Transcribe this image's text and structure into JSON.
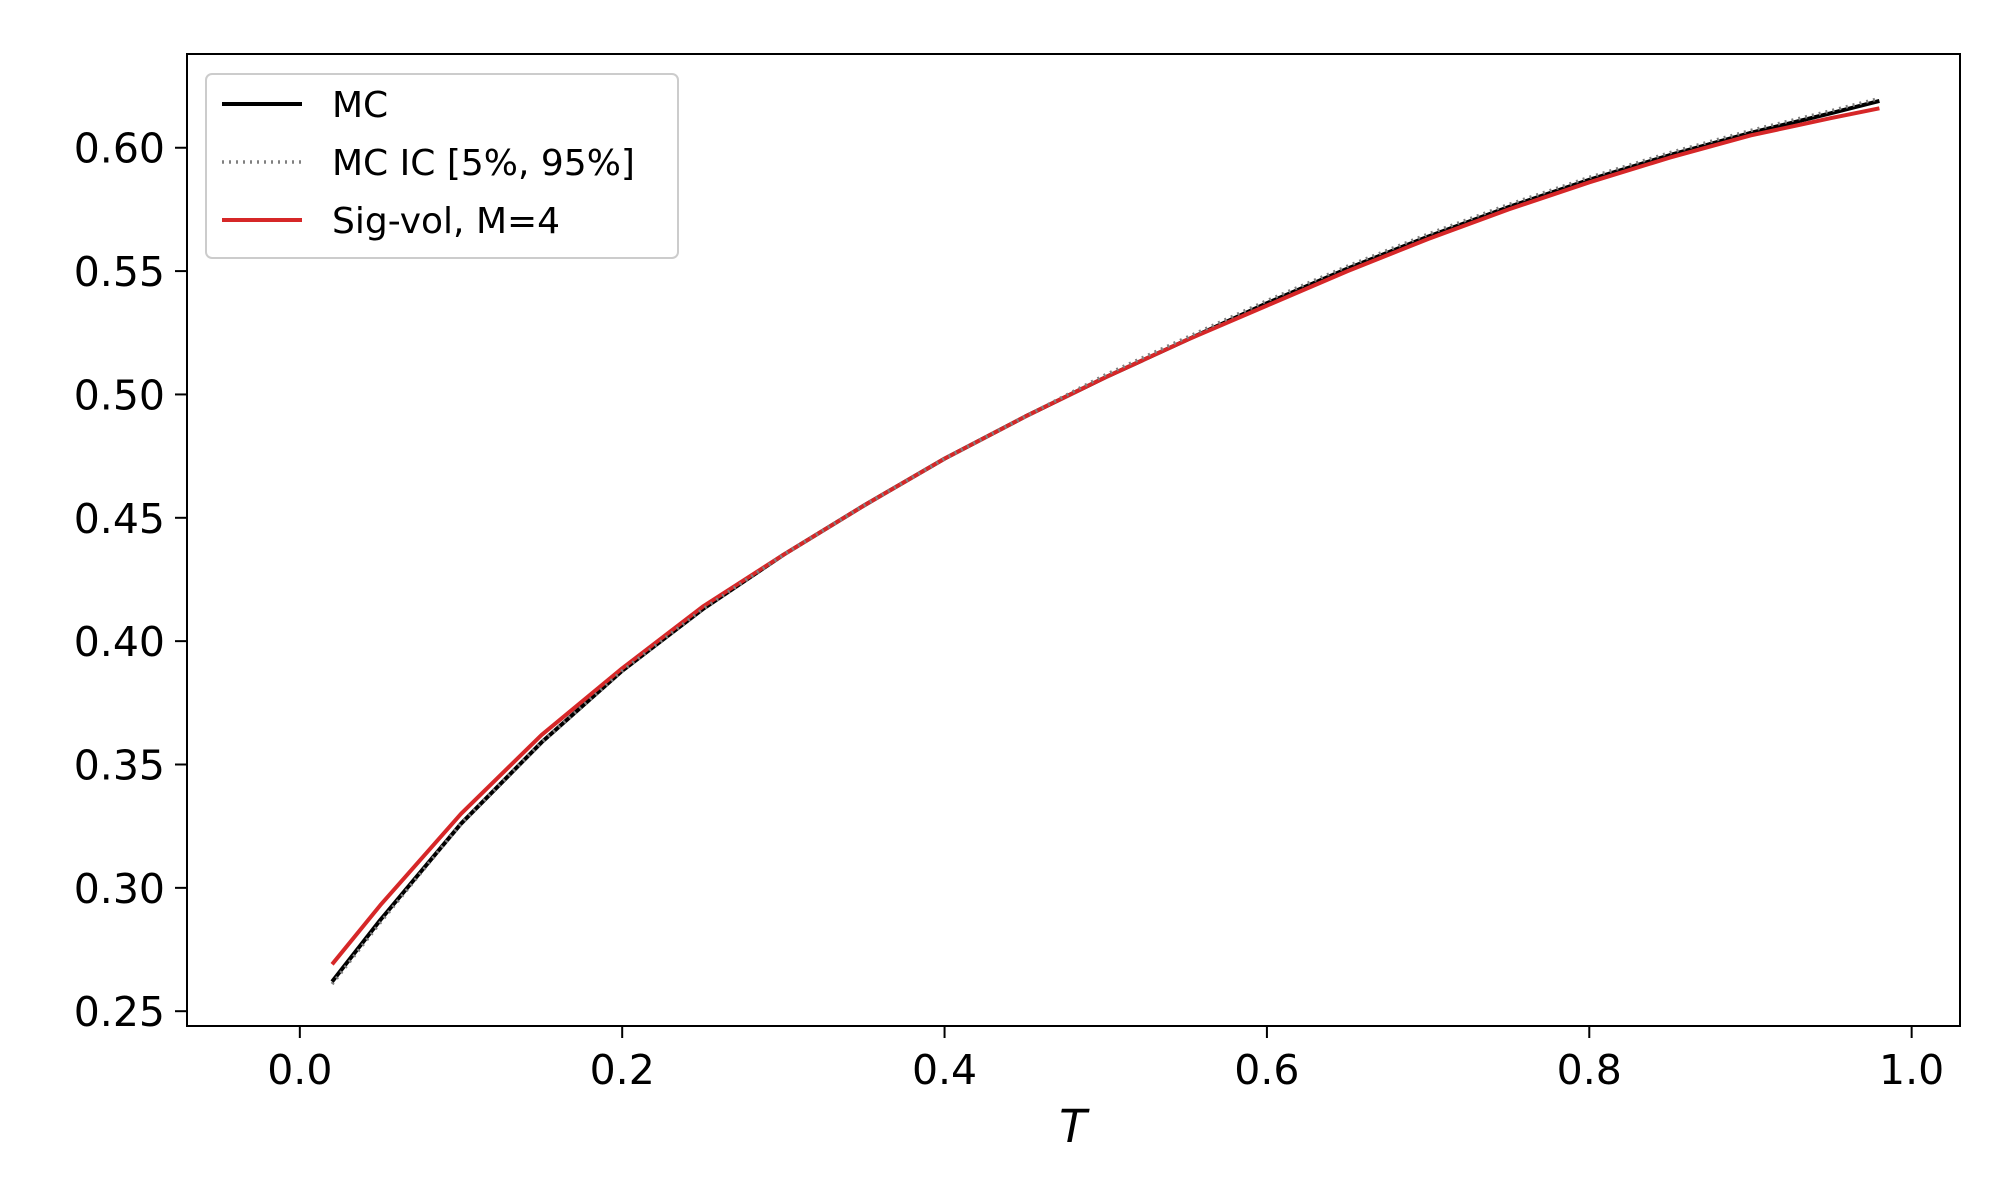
{
  "chart_data": {
    "type": "line",
    "title": "",
    "xlabel": "T",
    "ylabel": "",
    "xlim": [
      -0.07,
      1.03
    ],
    "ylim": [
      0.244,
      0.638
    ],
    "xticks": [
      0.0,
      0.2,
      0.4,
      0.6,
      0.8,
      1.0
    ],
    "xtick_labels": [
      "0.0",
      "0.2",
      "0.4",
      "0.6",
      "0.8",
      "1.0"
    ],
    "yticks": [
      0.25,
      0.3,
      0.35,
      0.4,
      0.45,
      0.5,
      0.55,
      0.6
    ],
    "ytick_labels": [
      "0.25",
      "0.30",
      "0.35",
      "0.40",
      "0.45",
      "0.50",
      "0.55",
      "0.60"
    ],
    "grid": false,
    "legend_position": "top-left",
    "x": [
      0.02,
      0.05,
      0.1,
      0.15,
      0.2,
      0.25,
      0.3,
      0.35,
      0.4,
      0.45,
      0.5,
      0.55,
      0.6,
      0.65,
      0.7,
      0.75,
      0.8,
      0.85,
      0.9,
      0.95,
      0.98
    ],
    "series": [
      {
        "name": "MC",
        "color": "#000000",
        "style": "solid",
        "values": [
          0.262,
          0.287,
          0.326,
          0.359,
          0.388,
          0.413,
          0.435,
          0.455,
          0.474,
          0.491,
          0.507,
          0.522,
          0.537,
          0.551,
          0.564,
          0.576,
          0.587,
          0.597,
          0.606,
          0.614,
          0.619
        ]
      },
      {
        "name": "MC IC [5%, 95%]",
        "color": "#808080",
        "style": "dotted",
        "values": [
          0.261,
          0.286,
          0.326,
          0.359,
          0.388,
          0.413,
          0.435,
          0.455,
          0.474,
          0.491,
          0.508,
          0.523,
          0.538,
          0.552,
          0.565,
          0.577,
          0.588,
          0.598,
          0.607,
          0.615,
          0.62
        ]
      },
      {
        "name": "Sig-vol, M=4",
        "color": "#d62728",
        "style": "solid",
        "values": [
          0.269,
          0.293,
          0.33,
          0.362,
          0.389,
          0.414,
          0.435,
          0.455,
          0.474,
          0.491,
          0.507,
          0.522,
          0.536,
          0.55,
          0.563,
          0.575,
          0.586,
          0.596,
          0.605,
          0.612,
          0.616
        ]
      }
    ]
  }
}
